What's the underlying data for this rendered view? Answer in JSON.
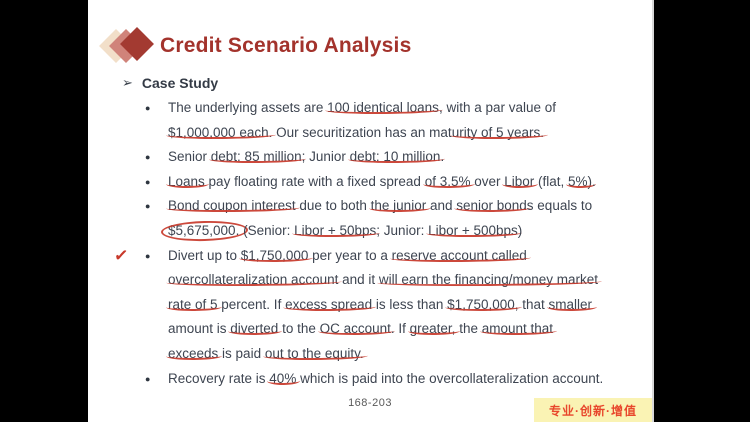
{
  "slide": {
    "title": "Credit Scenario Analysis",
    "section_label": "Case Study",
    "footer": {
      "page_number": "168-203",
      "brand_text": "专业·创新·增值"
    },
    "colors": {
      "title": "#A3332C",
      "body_text": "#3E4551",
      "annotation_red": "#C8392B",
      "brand_text": "#E8472C",
      "brand_bg": "#FAF3B4",
      "diamond_light": "#F2DFC9",
      "diamond_mid": "#D0837A",
      "diamond_dark": "#A33A31"
    },
    "icons": {
      "logo": "overlapping-diamonds-icon",
      "section_bullet": "arrow-right-icon",
      "list_bullet": "filled-circle-icon",
      "annotation": "red-checkmark-icon"
    }
  },
  "bullets": [
    {
      "check": false,
      "lines": [
        [
          {
            "t": "The underlying assets are "
          },
          {
            "t": "100 identical loans",
            "m": "u"
          },
          {
            "t": ", with a par value of"
          }
        ],
        [
          {
            "t": "$1,000,000 each.",
            "m": "u"
          },
          {
            "t": " Our securitization has an mat"
          },
          {
            "t": "urity of 5 years.",
            "m": "u"
          }
        ]
      ]
    },
    {
      "check": false,
      "lines": [
        [
          {
            "t": "Senior "
          },
          {
            "t": "debt: 85 million",
            "m": "u"
          },
          {
            "t": "; Junior "
          },
          {
            "t": "debt: 10 million",
            "m": "u"
          },
          {
            "t": "."
          }
        ]
      ]
    },
    {
      "check": false,
      "lines": [
        [
          {
            "t": "Loans",
            "m": "u"
          },
          {
            "t": " pay floating rate with a fixed spread "
          },
          {
            "t": "of 3.5%",
            "m": "u"
          },
          {
            "t": " over "
          },
          {
            "t": "Libor",
            "m": "u"
          },
          {
            "t": " (flat, "
          },
          {
            "t": "5%)",
            "m": "u"
          },
          {
            "t": "."
          }
        ]
      ]
    },
    {
      "check": false,
      "lines": [
        [
          {
            "t": "Bond coupon interest",
            "m": "u"
          },
          {
            "t": " due to both "
          },
          {
            "t": "the junior",
            "m": "u"
          },
          {
            "t": " and "
          },
          {
            "t": "senior bond",
            "m": "u"
          },
          {
            "t": "s equals to"
          }
        ],
        [
          {
            "t": "$5,675,000.",
            "m": "c"
          },
          {
            "t": " (Senior: "
          },
          {
            "t": "Libor + 50bps",
            "m": "u"
          },
          {
            "t": "; Junior: "
          },
          {
            "t": "Libor + 500bps",
            "m": "u"
          },
          {
            "t": ")"
          }
        ]
      ]
    },
    {
      "check": true,
      "lines": [
        [
          {
            "t": "Divert up to "
          },
          {
            "t": "$1,750,000",
            "m": "u"
          },
          {
            "t": " per year to a "
          },
          {
            "t": "reserve account called",
            "m": "u"
          }
        ],
        [
          {
            "t": "overcollateralization account",
            "m": "u"
          },
          {
            "t": " and it "
          },
          {
            "t": "will earn the financing/money market",
            "m": "u"
          }
        ],
        [
          {
            "t": "rate of 5",
            "m": "u"
          },
          {
            "t": " percent. If "
          },
          {
            "t": "excess spread",
            "m": "u"
          },
          {
            "t": " is less than "
          },
          {
            "t": "$1,750,000,",
            "m": "u"
          },
          {
            "t": " that "
          },
          {
            "t": "smaller",
            "m": "u"
          }
        ],
        [
          {
            "t": "amount is "
          },
          {
            "t": "diverted",
            "m": "u"
          },
          {
            "t": " to the "
          },
          {
            "t": "OC account",
            "m": "u"
          },
          {
            "t": ". If "
          },
          {
            "t": "greater,",
            "m": "u"
          },
          {
            "t": " the "
          },
          {
            "t": "amount that",
            "m": "u"
          }
        ],
        [
          {
            "t": "exceeds",
            "m": "u"
          },
          {
            "t": " is paid "
          },
          {
            "t": "out to the equity.",
            "m": "u"
          }
        ]
      ]
    },
    {
      "check": false,
      "lines": [
        [
          {
            "t": "Recovery rate is "
          },
          {
            "t": "40%",
            "m": "u"
          },
          {
            "t": " which is paid into the overcollateralization account."
          }
        ]
      ]
    }
  ]
}
